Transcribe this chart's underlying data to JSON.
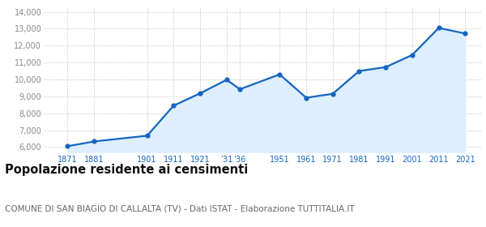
{
  "years": [
    1871,
    1881,
    1901,
    1911,
    1921,
    1931,
    1936,
    1951,
    1961,
    1971,
    1981,
    1991,
    2001,
    2011,
    2021
  ],
  "population": [
    6050,
    6330,
    6670,
    8450,
    9180,
    9980,
    9420,
    10300,
    8920,
    9150,
    10500,
    10730,
    11450,
    13050,
    12720
  ],
  "x_tick_positions": [
    1871,
    1881,
    1901,
    1911,
    1921,
    1931,
    1936,
    1951,
    1961,
    1971,
    1981,
    1991,
    2001,
    2011,
    2021
  ],
  "x_tick_labels": [
    "1871",
    "1881",
    "1901",
    "1911",
    "1921",
    "’31",
    "’36",
    "1951",
    "1961",
    "1971",
    "1981",
    "1991",
    "2001",
    "2011",
    "2021"
  ],
  "ylim": [
    5700,
    14300
  ],
  "yticks": [
    6000,
    7000,
    8000,
    9000,
    10000,
    11000,
    12000,
    13000,
    14000
  ],
  "xlim": [
    1862,
    2027
  ],
  "line_color": "#1565c0",
  "fill_color": "#ddeeff",
  "marker_size": 3.5,
  "line_width": 1.6,
  "title": "Popolazione residente ai censimenti",
  "subtitle": "COMUNE DI SAN BIAGIO DI CALLALTA (TV) - Dati ISTAT - Elaborazione TUTTITALIA.IT",
  "title_fontsize": 10.5,
  "subtitle_fontsize": 7.5,
  "tick_color": "#1565c0",
  "ytick_color": "#888888",
  "bg_color": "#ffffff",
  "grid_color": "#cccccc"
}
